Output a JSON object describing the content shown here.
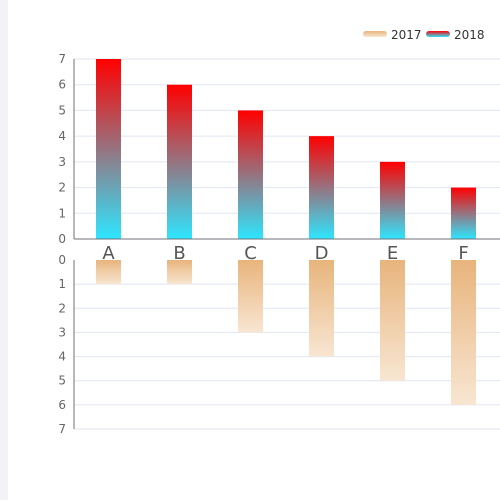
{
  "chart_data": {
    "type": "bar",
    "layout": "mirrored",
    "categories": [
      "A",
      "B",
      "C",
      "D",
      "E",
      "F"
    ],
    "series": [
      {
        "name": "2018",
        "position": "top",
        "values": [
          7,
          6,
          5,
          4,
          3,
          2
        ],
        "gradient": [
          "#ff0000",
          "#2ee6ff"
        ]
      },
      {
        "name": "2017",
        "position": "bottom",
        "values": [
          1,
          1,
          3,
          4,
          5,
          6
        ],
        "gradient": [
          "#e8b47c",
          "#f8e6d2"
        ]
      }
    ],
    "top_axis": {
      "ylim": [
        0,
        7
      ],
      "ticks": [
        "0",
        "1",
        "2",
        "3",
        "4",
        "5",
        "6",
        "7"
      ]
    },
    "bottom_axis": {
      "ylim": [
        0,
        7
      ],
      "ticks": [
        "0",
        "1",
        "2",
        "3",
        "4",
        "5",
        "6",
        "7"
      ],
      "inverted": true
    },
    "grid": true,
    "legend": {
      "placement": "top-right",
      "entries": [
        "2017",
        "2018"
      ]
    },
    "colors": {
      "grid": "#e0e6f1",
      "axis": "#6e7079"
    }
  }
}
